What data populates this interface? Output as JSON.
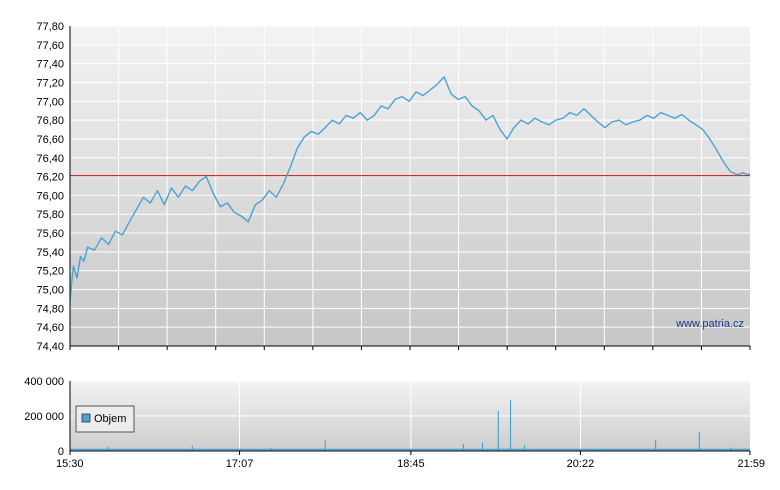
{
  "colors": {
    "line": "#4aa3d4",
    "reference": "#c8302b",
    "volume": "#4aa3d4",
    "grid": "#ffffff",
    "axis": "#000000"
  },
  "chart_data": [
    {
      "type": "line",
      "title": "",
      "watermark": "www.patria.cz",
      "ylim": [
        74.4,
        77.8
      ],
      "y_ticks": [
        "74,40",
        "74,60",
        "74,80",
        "75,00",
        "75,20",
        "75,40",
        "75,60",
        "75,80",
        "76,00",
        "76,20",
        "76,40",
        "76,60",
        "76,80",
        "77,00",
        "77,20",
        "77,40",
        "77,60",
        "77,80"
      ],
      "x_ticks": [
        "15:30",
        "17:07",
        "18:45",
        "20:22",
        "21:59"
      ],
      "reference_line": 76.21,
      "series": [
        {
          "x": [
            "15:30",
            "15:31",
            "15:32",
            "15:34",
            "15:36",
            "15:38",
            "15:40",
            "15:44",
            "15:48",
            "15:52",
            "15:56",
            "16:00",
            "16:04",
            "16:08",
            "16:12",
            "16:16",
            "16:20",
            "16:24",
            "16:28",
            "16:32",
            "16:36",
            "16:40",
            "16:44",
            "16:48",
            "16:52",
            "16:56",
            "17:00",
            "17:04",
            "17:08",
            "17:12",
            "17:16",
            "17:20",
            "17:24",
            "17:28",
            "17:32",
            "17:36",
            "17:40",
            "17:44",
            "17:48",
            "17:52",
            "17:56",
            "18:00",
            "18:04",
            "18:08",
            "18:12",
            "18:16",
            "18:20",
            "18:24",
            "18:28",
            "18:32",
            "18:36",
            "18:40",
            "18:44",
            "18:48",
            "18:52",
            "18:56",
            "19:00",
            "19:04",
            "19:08",
            "19:12",
            "19:16",
            "19:20",
            "19:24",
            "19:28",
            "19:32",
            "19:36",
            "19:40",
            "19:44",
            "19:48",
            "19:52",
            "19:56",
            "20:00",
            "20:04",
            "20:08",
            "20:12",
            "20:16",
            "20:20",
            "20:24",
            "20:28",
            "20:32",
            "20:36",
            "20:40",
            "20:44",
            "20:48",
            "20:52",
            "20:56",
            "21:00",
            "21:04",
            "21:08",
            "21:12",
            "21:16",
            "21:20",
            "21:24",
            "21:28",
            "21:32",
            "21:36",
            "21:40",
            "21:44",
            "21:48",
            "21:52",
            "21:55",
            "21:58",
            "21:59"
          ],
          "values": [
            74.88,
            75.08,
            75.25,
            75.12,
            75.35,
            75.3,
            75.45,
            75.42,
            75.55,
            75.48,
            75.62,
            75.58,
            75.72,
            75.85,
            75.98,
            75.92,
            76.05,
            75.9,
            76.08,
            75.98,
            76.1,
            76.05,
            76.15,
            76.2,
            76.02,
            75.88,
            75.92,
            75.82,
            75.78,
            75.72,
            75.9,
            75.95,
            76.05,
            75.98,
            76.12,
            76.3,
            76.5,
            76.62,
            76.68,
            76.65,
            76.72,
            76.8,
            76.76,
            76.85,
            76.82,
            76.88,
            76.8,
            76.85,
            76.95,
            76.92,
            77.02,
            77.05,
            77.0,
            77.1,
            77.06,
            77.12,
            77.18,
            77.26,
            77.08,
            77.02,
            77.05,
            76.95,
            76.9,
            76.8,
            76.85,
            76.7,
            76.6,
            76.72,
            76.8,
            76.76,
            76.82,
            76.78,
            76.75,
            76.8,
            76.82,
            76.88,
            76.85,
            76.92,
            76.85,
            76.78,
            76.72,
            76.78,
            76.8,
            76.75,
            76.78,
            76.8,
            76.85,
            76.82,
            76.88,
            76.85,
            76.82,
            76.86,
            76.8,
            76.75,
            76.7,
            76.6,
            76.48,
            76.35,
            76.25,
            76.22,
            76.24,
            76.22,
            76.23
          ]
        }
      ]
    },
    {
      "type": "bar",
      "ylim": [
        0,
        400000
      ],
      "y_ticks": [
        "0",
        "200 000",
        "400 000"
      ],
      "x_ticks": [
        "15:30",
        "17:07",
        "18:45",
        "20:22",
        "21:59"
      ],
      "series": [
        {
          "name": "Objem"
        }
      ],
      "legend": "left",
      "spikes": [
        {
          "x": "15:52",
          "value": 25000
        },
        {
          "x": "16:40",
          "value": 30000
        },
        {
          "x": "17:25",
          "value": 18000
        },
        {
          "x": "17:56",
          "value": 60000
        },
        {
          "x": "19:15",
          "value": 40000
        },
        {
          "x": "19:26",
          "value": 48000
        },
        {
          "x": "19:35",
          "value": 230000
        },
        {
          "x": "19:42",
          "value": 290000
        },
        {
          "x": "19:50",
          "value": 35000
        },
        {
          "x": "20:30",
          "value": 12000
        },
        {
          "x": "21:05",
          "value": 65000
        },
        {
          "x": "21:30",
          "value": 110000
        },
        {
          "x": "21:48",
          "value": 20000
        }
      ]
    }
  ]
}
